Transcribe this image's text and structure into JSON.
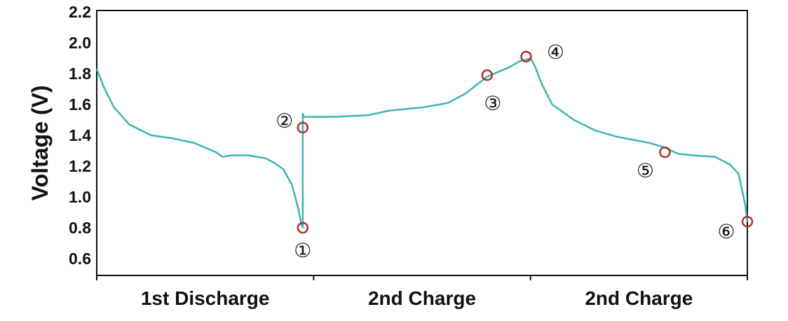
{
  "chart_data": {
    "type": "line",
    "ylabel": "Voltage (V)",
    "xlabel": "",
    "ylim": [
      0.6,
      2.2
    ],
    "yticks": [
      "0.6",
      "0.8",
      "1.0",
      "1.2",
      "1.4",
      "1.6",
      "1.8",
      "2.0",
      "2.2"
    ],
    "xlim": [
      0,
      3
    ],
    "categories": [
      "1st Discharge",
      "2nd Charge",
      "2nd Charge"
    ],
    "grid": false,
    "line_color": "#3bb5b0",
    "marker_color": "#b0302a",
    "series": [
      {
        "x": [
          0.0,
          0.03,
          0.08,
          0.15,
          0.25,
          0.35,
          0.45,
          0.55,
          0.58,
          0.62,
          0.7,
          0.78,
          0.82,
          0.86,
          0.9,
          0.93,
          0.944,
          0.95,
          0.95,
          0.955,
          0.97,
          1.1,
          1.25,
          1.35,
          1.5,
          1.62,
          1.7,
          1.8,
          1.9,
          1.95,
          1.98,
          2.0,
          2.02,
          2.05,
          2.1,
          2.2,
          2.3,
          2.4,
          2.55,
          2.62,
          2.68,
          2.75,
          2.85,
          2.92,
          2.96,
          2.99,
          3.0
        ],
        "y": [
          1.83,
          1.72,
          1.58,
          1.47,
          1.4,
          1.38,
          1.35,
          1.29,
          1.26,
          1.27,
          1.27,
          1.25,
          1.22,
          1.18,
          1.08,
          0.92,
          0.82,
          0.8,
          1.54,
          1.52,
          1.52,
          1.52,
          1.53,
          1.56,
          1.58,
          1.61,
          1.67,
          1.78,
          1.84,
          1.88,
          1.89,
          1.9,
          1.85,
          1.74,
          1.6,
          1.5,
          1.43,
          1.39,
          1.35,
          1.32,
          1.28,
          1.27,
          1.26,
          1.21,
          1.15,
          0.95,
          0.84
        ]
      }
    ],
    "markers": [
      {
        "label": "①",
        "x": 0.95,
        "y": 0.8
      },
      {
        "label": "②",
        "x": 0.95,
        "y": 1.45
      },
      {
        "label": "③",
        "x": 1.8,
        "y": 1.79
      },
      {
        "label": "④",
        "x": 1.98,
        "y": 1.91
      },
      {
        "label": "⑤",
        "x": 2.62,
        "y": 1.29
      },
      {
        "label": "⑥",
        "x": 3.0,
        "y": 0.84
      }
    ]
  }
}
